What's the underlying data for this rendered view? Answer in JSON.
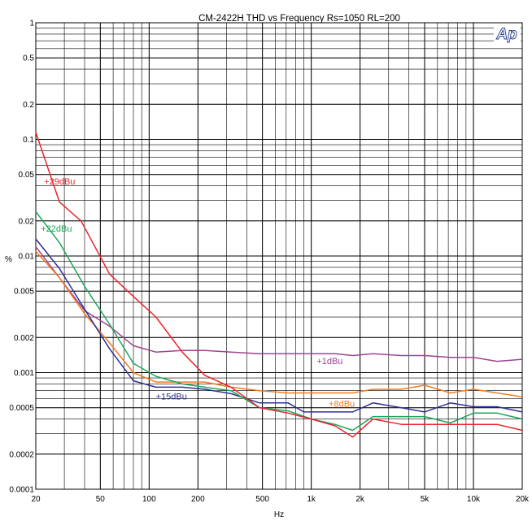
{
  "chart_data": {
    "type": "line",
    "title": "CM-2422H  THD vs Frequency Rs=1050 RL=200",
    "xlabel": "Hz",
    "ylabel": "%",
    "x_scale": "log",
    "y_scale": "log",
    "xlim": [
      20,
      20000
    ],
    "ylim": [
      0.0001,
      1
    ],
    "grid": true,
    "logo": "Ap",
    "x_ticks": [
      {
        "value": 20,
        "label": "20"
      },
      {
        "value": 50,
        "label": "50"
      },
      {
        "value": 100,
        "label": "100"
      },
      {
        "value": 200,
        "label": "200"
      },
      {
        "value": 500,
        "label": "500"
      },
      {
        "value": 1000,
        "label": "1k"
      },
      {
        "value": 2000,
        "label": "2k"
      },
      {
        "value": 5000,
        "label": "5k"
      },
      {
        "value": 10000,
        "label": "10k"
      },
      {
        "value": 20000,
        "label": "20k"
      }
    ],
    "y_ticks": [
      {
        "value": 1,
        "label": "1"
      },
      {
        "value": 0.5,
        "label": "0.5"
      },
      {
        "value": 0.2,
        "label": "0.2"
      },
      {
        "value": 0.1,
        "label": "0.1"
      },
      {
        "value": 0.05,
        "label": "0.05"
      },
      {
        "value": 0.02,
        "label": "0.02"
      },
      {
        "value": 0.01,
        "label": "0.01"
      },
      {
        "value": 0.005,
        "label": "0.005"
      },
      {
        "value": 0.002,
        "label": "0.002"
      },
      {
        "value": 0.001,
        "label": "0.001"
      },
      {
        "value": 0.0005,
        "label": "0.0005"
      },
      {
        "value": 0.0002,
        "label": "0.0002"
      },
      {
        "value": 0.0001,
        "label": "0.0001"
      }
    ],
    "series": [
      {
        "name": "+29dBu",
        "color": "#e8262b",
        "label_pos": [
          22.5,
          0.041
        ],
        "points": [
          [
            20,
            0.115
          ],
          [
            28,
            0.029
          ],
          [
            38,
            0.02
          ],
          [
            57,
            0.007
          ],
          [
            80,
            0.0045
          ],
          [
            110,
            0.003
          ],
          [
            160,
            0.0015
          ],
          [
            220,
            0.00095
          ],
          [
            320,
            0.00075
          ],
          [
            480,
            0.0005
          ],
          [
            720,
            0.00045
          ],
          [
            1000,
            0.0004
          ],
          [
            1400,
            0.00035
          ],
          [
            1800,
            0.00028
          ],
          [
            2400,
            0.0004
          ],
          [
            3600,
            0.00036
          ],
          [
            5000,
            0.00036
          ],
          [
            7200,
            0.00036
          ],
          [
            10000,
            0.00036
          ],
          [
            14000,
            0.00036
          ],
          [
            20000,
            0.00032
          ]
        ]
      },
      {
        "name": "+22dBu",
        "color": "#1ea659",
        "label_pos": [
          21.5,
          0.0162
        ],
        "points": [
          [
            20,
            0.024
          ],
          [
            28,
            0.013
          ],
          [
            40,
            0.0055
          ],
          [
            57,
            0.0026
          ],
          [
            80,
            0.0012
          ],
          [
            110,
            0.00093
          ],
          [
            160,
            0.0008
          ],
          [
            220,
            0.00075
          ],
          [
            320,
            0.0007
          ],
          [
            480,
            0.0005
          ],
          [
            720,
            0.00047
          ],
          [
            1000,
            0.0004
          ],
          [
            1400,
            0.00036
          ],
          [
            1800,
            0.00032
          ],
          [
            2400,
            0.00042
          ],
          [
            3600,
            0.00042
          ],
          [
            5000,
            0.00042
          ],
          [
            7200,
            0.00037
          ],
          [
            10000,
            0.00045
          ],
          [
            14000,
            0.00045
          ],
          [
            20000,
            0.0004
          ]
        ]
      },
      {
        "name": "+15dBu",
        "color": "#2e3192",
        "label_pos": [
          110,
          0.00059
        ],
        "points": [
          [
            20,
            0.014
          ],
          [
            28,
            0.0078
          ],
          [
            40,
            0.0035
          ],
          [
            57,
            0.0016
          ],
          [
            80,
            0.00085
          ],
          [
            110,
            0.00075
          ],
          [
            160,
            0.00075
          ],
          [
            220,
            0.00072
          ],
          [
            320,
            0.00066
          ],
          [
            480,
            0.00055
          ],
          [
            720,
            0.00055
          ],
          [
            900,
            0.00046
          ],
          [
            1400,
            0.00046
          ],
          [
            1800,
            0.00046
          ],
          [
            2400,
            0.00055
          ],
          [
            3600,
            0.0005
          ],
          [
            5000,
            0.00046
          ],
          [
            7200,
            0.00055
          ],
          [
            10000,
            0.00051
          ],
          [
            14000,
            0.00051
          ],
          [
            20000,
            0.00046
          ]
        ]
      },
      {
        "name": "+8dBu",
        "color": "#f47b20",
        "label_pos": [
          1280,
          0.00051
        ],
        "points": [
          [
            20,
            0.011
          ],
          [
            28,
            0.0065
          ],
          [
            40,
            0.0032
          ],
          [
            57,
            0.0018
          ],
          [
            80,
            0.001
          ],
          [
            110,
            0.00083
          ],
          [
            160,
            0.00083
          ],
          [
            220,
            0.00083
          ],
          [
            320,
            0.00075
          ],
          [
            480,
            0.0007
          ],
          [
            720,
            0.00067
          ],
          [
            1000,
            0.00067
          ],
          [
            1400,
            0.00067
          ],
          [
            1800,
            0.00067
          ],
          [
            2400,
            0.00072
          ],
          [
            3600,
            0.00072
          ],
          [
            5000,
            0.00078
          ],
          [
            7200,
            0.00067
          ],
          [
            10000,
            0.00072
          ],
          [
            14000,
            0.00067
          ],
          [
            20000,
            0.00062
          ]
        ]
      },
      {
        "name": "+1dBu",
        "color": "#a1438f",
        "label_pos": [
          1080,
          0.00118
        ],
        "points": [
          [
            20,
            0.012
          ],
          [
            28,
            0.0065
          ],
          [
            40,
            0.0034
          ],
          [
            57,
            0.0025
          ],
          [
            80,
            0.0017
          ],
          [
            110,
            0.0015
          ],
          [
            160,
            0.00155
          ],
          [
            220,
            0.00155
          ],
          [
            320,
            0.0015
          ],
          [
            480,
            0.00145
          ],
          [
            720,
            0.00145
          ],
          [
            1000,
            0.00145
          ],
          [
            1400,
            0.00145
          ],
          [
            1800,
            0.0014
          ],
          [
            2400,
            0.00145
          ],
          [
            3600,
            0.0014
          ],
          [
            5000,
            0.0014
          ],
          [
            7200,
            0.00135
          ],
          [
            10000,
            0.00135
          ],
          [
            14000,
            0.00125
          ],
          [
            20000,
            0.0013
          ]
        ]
      }
    ]
  }
}
